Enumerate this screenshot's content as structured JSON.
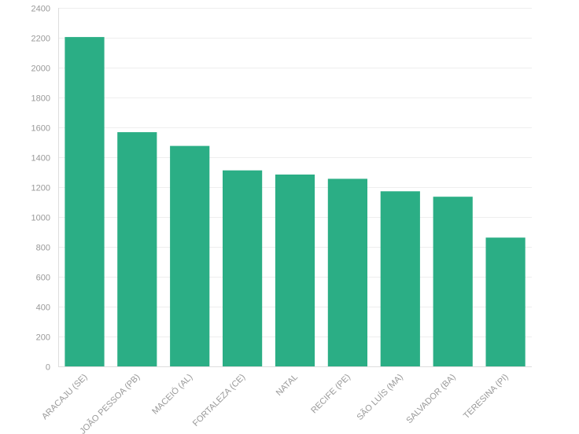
{
  "chart_data": {
    "type": "bar",
    "title": "",
    "xlabel": "",
    "ylabel": "",
    "ylim": [
      0,
      2400
    ],
    "yticks": [
      0,
      200,
      400,
      600,
      800,
      1000,
      1200,
      1400,
      1600,
      1800,
      2000,
      2200,
      2400
    ],
    "grid": true,
    "legend": "none",
    "bar_color": "#2bae85",
    "categories": [
      "ARACAJU (SE)",
      "JOÃO PESSOA (PB)",
      "MACEIÓ (AL)",
      "FORTALEZA (CE)",
      "NATAL",
      "RECIFE (PE)",
      "SÃO LUÍS (MA)",
      "SALVADOR (BA)",
      "TERESINA (PI)"
    ],
    "values": [
      2205,
      1568,
      1476,
      1312,
      1284,
      1256,
      1172,
      1136,
      862
    ]
  }
}
